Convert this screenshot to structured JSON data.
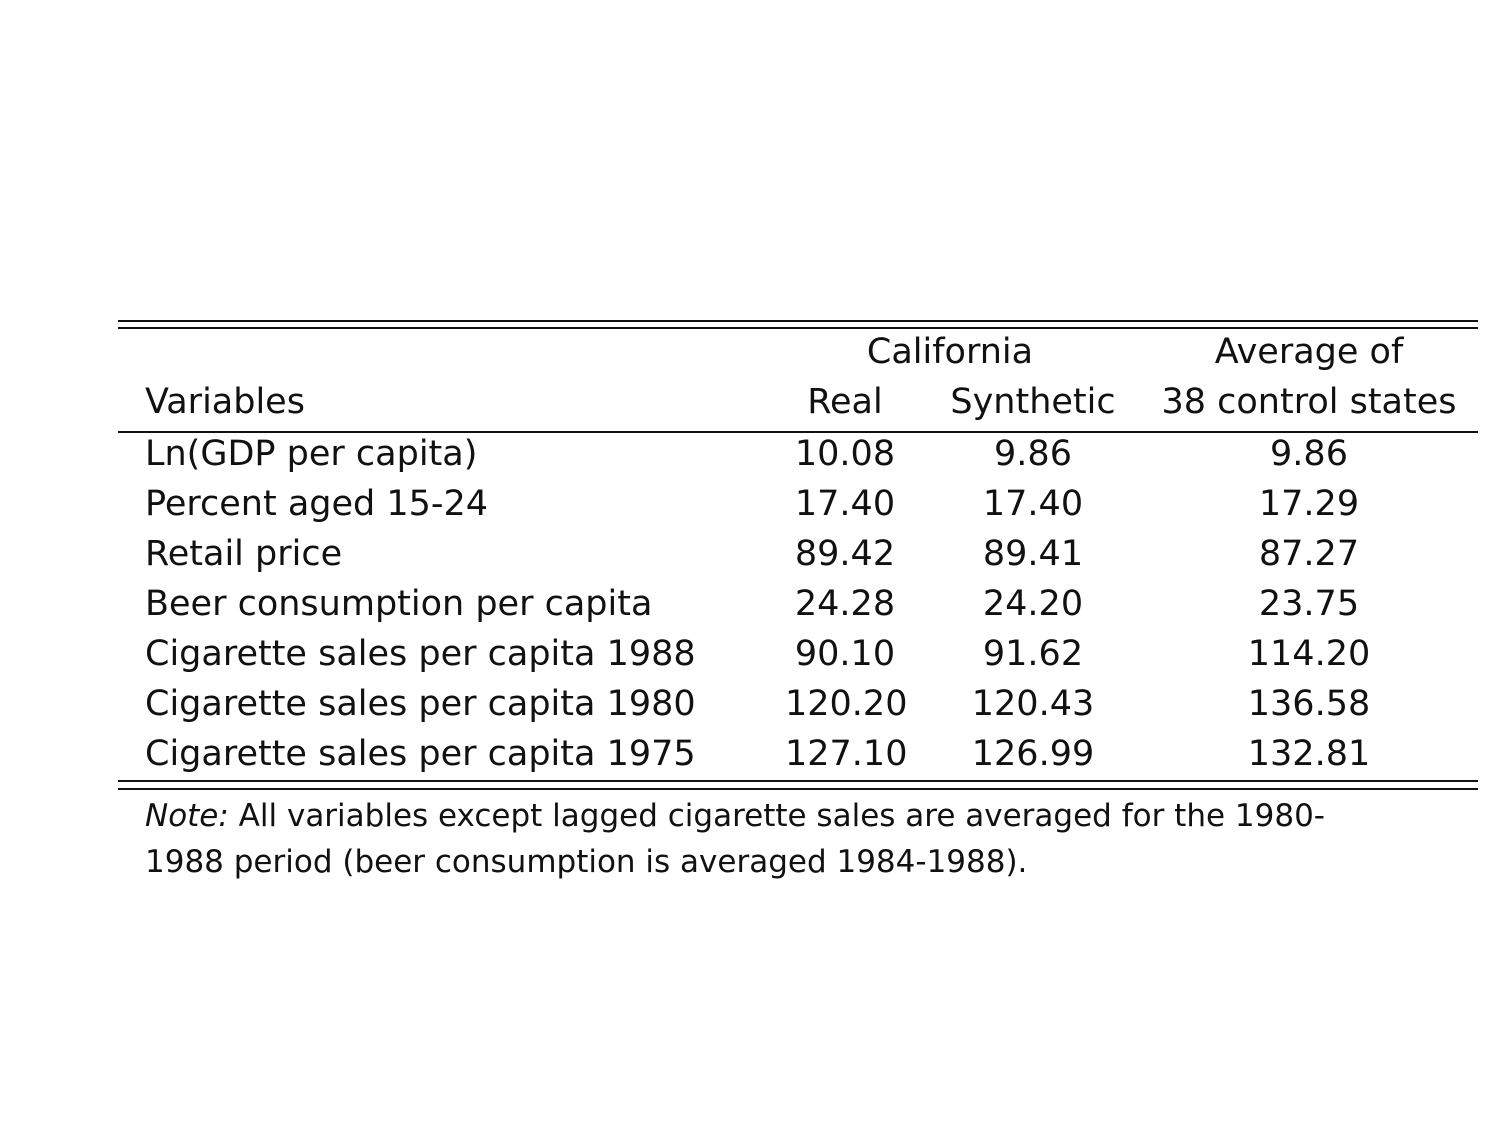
{
  "table": {
    "header": {
      "group_california": "California",
      "group_average_line1": "Average of",
      "col_variables": "Variables",
      "col_real": "Real",
      "col_synthetic": "Synthetic",
      "col_average_line2": "38 control states"
    },
    "rows": [
      {
        "label": "Ln(GDP per capita)",
        "real": "10.08",
        "synthetic": "9.86",
        "average": "9.86"
      },
      {
        "label": "Percent aged 15-24",
        "real": "17.40",
        "synthetic": "17.40",
        "average": "17.29"
      },
      {
        "label": "Retail price",
        "real": "89.42",
        "synthetic": "89.41",
        "average": "87.27"
      },
      {
        "label": "Beer consumption per capita",
        "real": "24.28",
        "synthetic": "24.20",
        "average": "23.75"
      },
      {
        "label": "Cigarette sales per capita 1988",
        "real": "90.10",
        "synthetic": "91.62",
        "average": "114.20"
      },
      {
        "label": "Cigarette sales per capita 1980",
        "real": "120.20",
        "synthetic": "120.43",
        "average": "136.58"
      },
      {
        "label": "Cigarette sales per capita 1975",
        "real": "127.10",
        "synthetic": "126.99",
        "average": "132.81"
      }
    ],
    "note": {
      "prefix": "Note:",
      "text": " All variables except lagged cigarette sales are averaged for the 1980-1988 period (beer consumption is averaged 1984-1988)."
    }
  }
}
